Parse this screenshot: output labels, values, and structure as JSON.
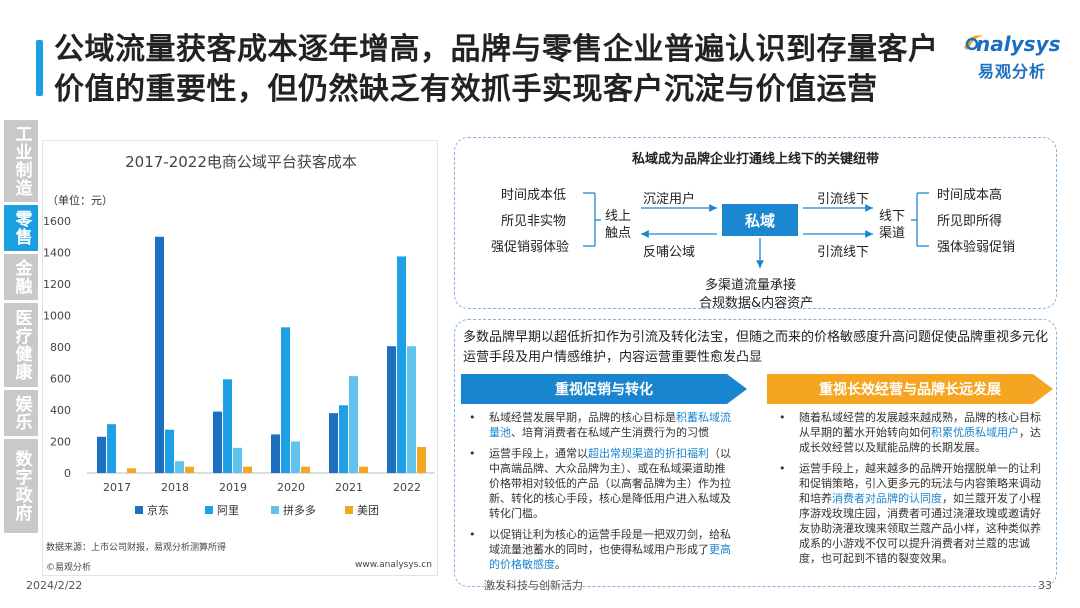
{
  "slide": {
    "title": "公域流量获客成本逐年增高，品牌与零售企业普遍认识到存量客户价值的重要性，但仍然缺乏有效抓手实现客户沉淀与价值运营",
    "logo_word": "nalysys",
    "logo_cn": "易观分析",
    "date": "2024/2/22",
    "slogan": "激发科技与创新活力",
    "page_number": "33",
    "source": "数据来源：上市公司财报，易观分析测算所得",
    "copyright": "©易观分析",
    "url": "www.analysys.cn",
    "accent_color": "#1a9fe0"
  },
  "side_tabs": [
    {
      "label": "工业制造",
      "active": false
    },
    {
      "label": "零售",
      "active": true
    },
    {
      "label": "金融",
      "active": false
    },
    {
      "label": "医疗健康",
      "active": false
    },
    {
      "label": "娱乐",
      "active": false
    },
    {
      "label": "数字政府",
      "active": false
    }
  ],
  "chart_data": {
    "type": "bar",
    "title": "2017-2022电商公域平台获客成本",
    "unit_label": "（单位：元）",
    "categories": [
      "2017",
      "2018",
      "2019",
      "2020",
      "2021",
      "2022"
    ],
    "ylim": [
      0,
      1600
    ],
    "yticks": [
      0,
      200,
      400,
      600,
      800,
      1000,
      1200,
      1400,
      1600
    ],
    "grid": false,
    "legend_position": "bottom",
    "series": [
      {
        "name": "京东",
        "color": "#1d6fbf",
        "values": [
          230,
          1500,
          390,
          245,
          380,
          805
        ]
      },
      {
        "name": "阿里",
        "color": "#1ea0e6",
        "values": [
          310,
          275,
          595,
          925,
          430,
          1375
        ]
      },
      {
        "name": "拼多多",
        "color": "#5fc3ee",
        "values": [
          null,
          75,
          160,
          200,
          615,
          805
        ]
      },
      {
        "name": "美团",
        "color": "#f5a623",
        "values": [
          30,
          40,
          40,
          40,
          40,
          165
        ]
      }
    ]
  },
  "diagram": {
    "title": "私域成为品牌企业打通线上线下的关键纽带",
    "center": "私域",
    "left_items": [
      "时间成本低",
      "所见非实物",
      "强促销弱体验"
    ],
    "left_node": "线上\n触点",
    "left_arrow_top": "沉淀用户",
    "left_arrow_bottom": "反哺公域",
    "right_arrow_top": "引流线下",
    "right_arrow_bottom": "引流线下",
    "right_node": "线下\n渠道",
    "right_items": [
      "时间成本高",
      "所见即所得",
      "强体验弱促销"
    ],
    "bottom_line1": "多渠道流量承接",
    "bottom_line2": "合规数据&内容资产",
    "line_color": "#1b87d1"
  },
  "analysis": {
    "intro": "多数品牌早期以超低折扣作为引流及转化法宝，但随之而来的价格敏感度升高问题促使品牌重视多元化运营手段及用户情感维护，内容运营重要性愈发凸显",
    "left_banner": "重视促销与转化",
    "right_banner": "重视长效经营与品牌长远发展",
    "left_bullets": [
      {
        "pre": "私域经营发展早期，品牌的核心目标是",
        "hl": "积蓄私域流量池",
        "post": "、培育消费者在私域产生消费行为的习惯"
      },
      {
        "pre": "运营手段上，通常以",
        "hl": "超出常规渠道的折扣福利",
        "post": "（以中高端品牌、大众品牌为主）、或在私域渠道助推价格带相对较低的产品（以高奢品牌为主）作为拉新、转化的核心手段，核心是降低用户进入私域及转化门槛。"
      },
      {
        "pre": "以促销让利为核心的运营手段是一把双刃剑，给私域流量池蓄水的同时，也使得私域用户形成了",
        "hl": "更高的价格敏感度",
        "post": "。"
      }
    ],
    "right_bullets": [
      {
        "pre": "随着私域经营的发展越来越成熟，品牌的核心目标从早期的蓄水开始转向如何",
        "hl": "积累优质私域用户",
        "post": "，达成长效经营以及赋能品牌的长期发展。"
      },
      {
        "pre": "运营手段上，越来越多的品牌开始摆脱单一的让利和促销策略，引入更多元的玩法与内容策略来调动和培养",
        "hl": "消费者对品牌的认同度",
        "post": "，如兰蔻开发了小程序游戏玫瑰庄园，消费者可通过浇灌玫瑰或邀请好友协助浇灌玫瑰来领取兰蔻产品小样，这种类似养成系的小游戏不仅可以提升消费者对兰蔻的忠诚度，也可起到不错的裂变效果。"
      }
    ]
  }
}
